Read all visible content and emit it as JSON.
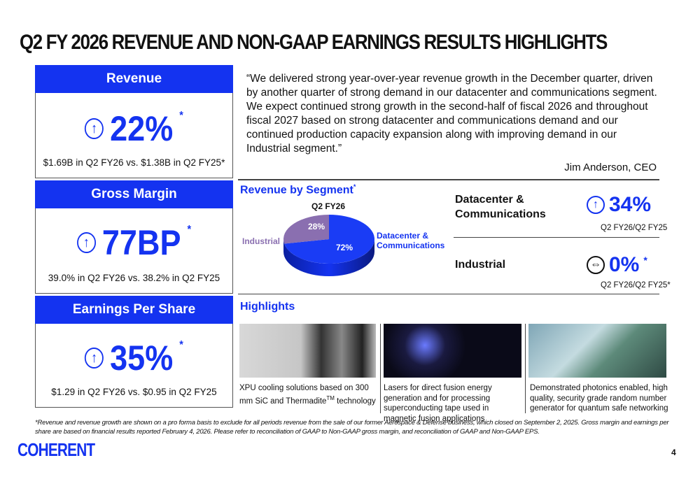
{
  "title": "Q2 FY 2026 REVENUE AND NON-GAAP EARNINGS RESULTS HIGHLIGHTS",
  "colors": {
    "brand_blue": "#1433f0",
    "industrial_purple": "#8a6fb0"
  },
  "metrics": [
    {
      "header": "Revenue",
      "icon": "arrow-up-circle-icon",
      "value": "22%",
      "mark": "*",
      "detail": "$1.69B in Q2 FY26 vs. $1.38B in Q2 FY25*"
    },
    {
      "header": "Gross Margin",
      "icon": "arrow-up-circle-icon",
      "value": "77BP",
      "mark": "*",
      "detail": "39.0% in Q2 FY26 vs. 38.2% in Q2 FY25"
    },
    {
      "header": "Earnings Per Share",
      "icon": "arrow-up-circle-icon",
      "value": "35%",
      "mark": "*",
      "detail": "$1.29 in Q2 FY26 vs. $0.95 in Q2 FY25"
    }
  ],
  "quote": {
    "text": "“We delivered strong year-over-year revenue growth in the December quarter, driven by another quarter of strong demand in our datacenter and communications segment. We expect continued strong growth in the second-half of fiscal 2026 and throughout fiscal 2027 based on strong datacenter and communications demand and our continued production capacity expansion along with improving demand in our Industrial segment.”",
    "author": "Jim Anderson, CEO"
  },
  "segment": {
    "heading": "Revenue by Segment",
    "mark": "*"
  },
  "chart_data": {
    "type": "pie",
    "title": "Q2 FY26",
    "slices": [
      {
        "label": "Datacenter & Communications",
        "value": 72,
        "data_label": "72%"
      },
      {
        "label": "Industrial",
        "value": 28,
        "data_label": "28%"
      }
    ]
  },
  "segment_growth": [
    {
      "name": "Datacenter & Communications",
      "icon": "arrow-up-circle-icon",
      "value": "34%",
      "mark": "",
      "period": "Q2 FY26/Q2 FY25"
    },
    {
      "name": "Industrial",
      "icon": "arrow-sideways-circle-icon",
      "value": "0%",
      "mark": "*",
      "period": "Q2 FY26/Q2 FY25*"
    }
  ],
  "highlights": {
    "heading": "Highlights",
    "items": [
      {
        "caption_a": "XPU cooling solutions based on 300 mm SiC and Thermadite",
        "sup": "TM",
        "caption_b": " technology"
      },
      {
        "caption_a": "Lasers for direct fusion energy generation and for processing superconducting tape used in magnetic fusion applications",
        "sup": "",
        "caption_b": ""
      },
      {
        "caption_a": "Demonstrated photonics enabled, high quality, security grade random number generator for quantum safe networking",
        "sup": "",
        "caption_b": ""
      }
    ]
  },
  "footnote": "*Revenue and revenue growth are shown on a pro forma basis to exclude for all periods revenue from the sale of our former Aerospace & Defense business, which closed on September 2, 2025.  Gross margin and earnings per share are based on financial results reported February 4, 2026. Please refer to reconciliation of GAAP to Non-GAAP gross margin, and reconciliation of GAAP and Non-GAAP EPS.",
  "logo": "COHERENT",
  "page_number": "4"
}
